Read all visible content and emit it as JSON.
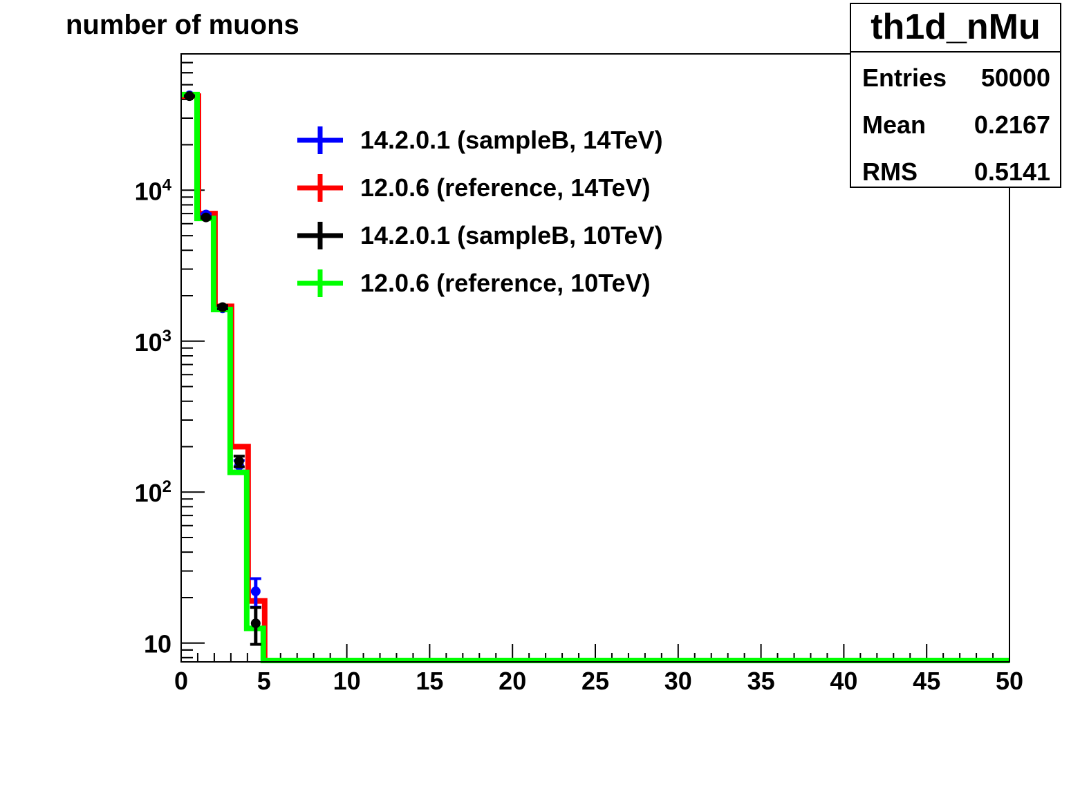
{
  "chart_data": {
    "type": "histogram",
    "title": "number of muons",
    "xlim": [
      0,
      50
    ],
    "ylim": [
      7.5,
      80000
    ],
    "yscale": "log",
    "grid": false,
    "legend_position": "top-left",
    "x_ticks": [
      "0",
      "5",
      "10",
      "15",
      "20",
      "25",
      "30",
      "35",
      "40",
      "45",
      "50"
    ],
    "y_ticks": [
      {
        "value": 10,
        "label": "10",
        "sup": ""
      },
      {
        "value": 100,
        "label": "10",
        "sup": "2"
      },
      {
        "value": 1000,
        "label": "10",
        "sup": "3"
      },
      {
        "value": 10000,
        "label": "10",
        "sup": "4"
      }
    ],
    "bin_edges": [
      0,
      1,
      2,
      3,
      4,
      5
    ],
    "series": [
      {
        "name": "14.2.0.1 (sampleB, 14TeV)",
        "color": "#0000ff",
        "style": "markers",
        "values": [
          42500,
          6900,
          1650,
          150,
          22
        ],
        "errors": [
          206,
          83,
          41,
          12,
          4.7
        ]
      },
      {
        "name": "12.0.6 (reference, 14TeV)",
        "color": "#ff0000",
        "style": "hist",
        "values": [
          42000,
          7000,
          1700,
          200,
          19
        ],
        "errors": [
          205,
          84,
          41,
          14,
          4.4
        ]
      },
      {
        "name": "14.2.0.1 (sampleB, 10TeV)",
        "color": "#000000",
        "style": "markers",
        "values": [
          42000,
          6600,
          1680,
          160,
          13.5
        ],
        "errors": [
          205,
          81,
          41,
          13,
          3.7
        ]
      },
      {
        "name": "12.0.6 (reference, 10TeV)",
        "color": "#00ff00",
        "style": "hist",
        "values": [
          43000,
          6500,
          1620,
          135,
          12.5
        ],
        "errors": [
          207,
          81,
          40,
          12,
          3.5
        ]
      }
    ]
  },
  "stats_box": {
    "title": "th1d_nMu",
    "entries_label": "Entries",
    "entries_value": "50000",
    "mean_label": "Mean",
    "mean_value": "0.2167",
    "rms_label": "RMS",
    "rms_value": "0.5141"
  }
}
